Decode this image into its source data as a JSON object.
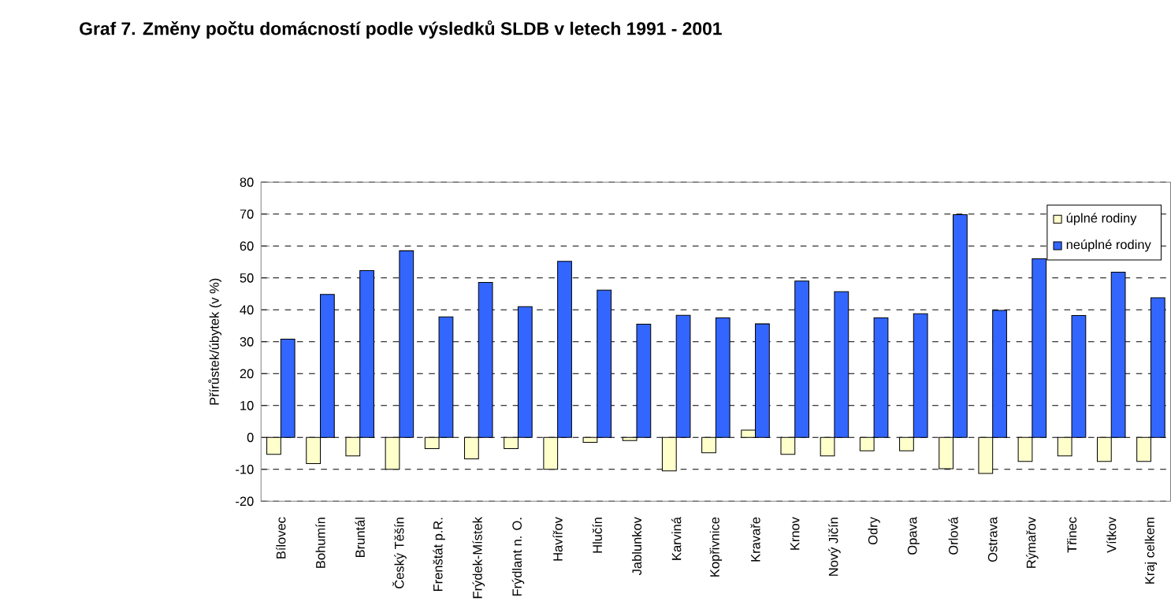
{
  "chart_data": {
    "type": "bar",
    "title": "Graf 7. Změny počtu domácností podle výsledků SLDB v letech 1991 - 2001",
    "ylabel": "Přírůstek/úbytek (v %)",
    "categories": [
      "Bílovec",
      "Bohumín",
      "Bruntál",
      "Český Těšín",
      "Frenštát p.R.",
      "Frýdek-Místek",
      "Frýdlant n. O.",
      "Havířov",
      "Hlučín",
      "Jablunkov",
      "Karviná",
      "Kopřivnice",
      "Kravaře",
      "Krnov",
      "Nový Jičín",
      "Odry",
      "Opava",
      "Orlová",
      "Ostrava",
      "Rýmařov",
      "Třinec",
      "Vítkov",
      "Kraj celkem"
    ],
    "series": [
      {
        "name": "úplné rodiny",
        "color": "#ffffcc",
        "values": [
          -5.3,
          -8.2,
          -5.8,
          -10,
          -3.5,
          -6.7,
          -3.5,
          -10,
          -1.5,
          -1,
          -10.5,
          -4.8,
          2.3,
          -5.3,
          -5.8,
          -4.2,
          -4.2,
          -9.8,
          -11.3,
          -7.5,
          -5.8,
          -7.5,
          -7.5
        ]
      },
      {
        "name": "neúplné rodiny",
        "color": "#3366ff",
        "values": [
          30.8,
          44.8,
          52.3,
          58.5,
          37.8,
          48.6,
          41,
          55.2,
          46.2,
          35.5,
          38.3,
          37.5,
          35.6,
          49,
          45.7,
          37.5,
          38.8,
          69.8,
          39.8,
          56,
          38.2,
          51.8,
          43.8
        ]
      }
    ],
    "ylim": [
      -20,
      80
    ],
    "yticks": [
      -20,
      -10,
      0,
      10,
      20,
      30,
      40,
      50,
      60,
      70,
      80
    ],
    "grid": "y",
    "legend": "top right"
  }
}
